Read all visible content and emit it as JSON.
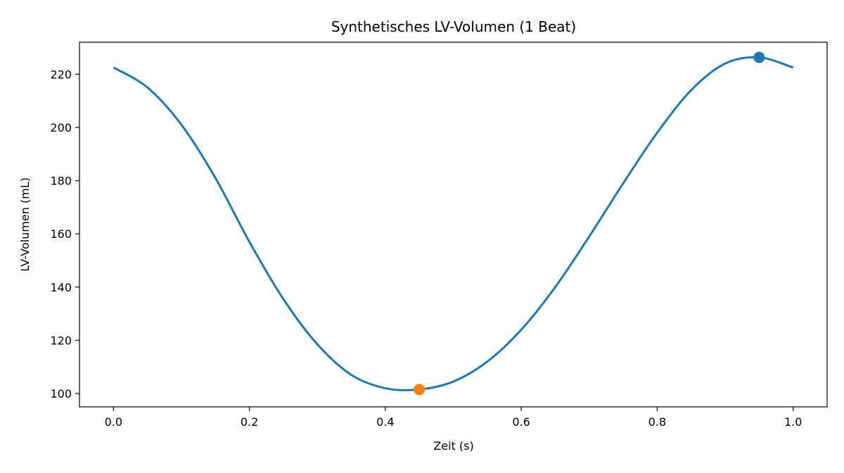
{
  "chart_data": {
    "type": "line",
    "title": "Synthetisches LV-Volumen (1 Beat)",
    "xlabel": "Zeit (s)",
    "ylabel": "LV-Volumen (mL)",
    "xlim": [
      -0.05,
      1.05
    ],
    "ylim": [
      95,
      232
    ],
    "x_ticks": [
      0.0,
      0.2,
      0.4,
      0.6,
      0.8,
      1.0
    ],
    "x_tick_labels": [
      "0.0",
      "0.2",
      "0.4",
      "0.6",
      "0.8",
      "1.0"
    ],
    "y_ticks": [
      100,
      120,
      140,
      160,
      180,
      200,
      220
    ],
    "y_tick_labels": [
      "100",
      "120",
      "140",
      "160",
      "180",
      "200",
      "220"
    ],
    "grid": false,
    "series": [
      {
        "color": "#1f77b4",
        "x": [
          0.0,
          0.05,
          0.1,
          0.15,
          0.2,
          0.25,
          0.3,
          0.35,
          0.4,
          0.45,
          0.5,
          0.55,
          0.6,
          0.65,
          0.7,
          0.75,
          0.8,
          0.85,
          0.9,
          0.95,
          1.0
        ],
        "y": [
          222.5,
          215.0,
          201.0,
          181.0,
          157.0,
          135.5,
          118.5,
          107.0,
          102.0,
          101.5,
          104.5,
          112.0,
          124.0,
          140.0,
          159.0,
          179.0,
          198.0,
          214.0,
          224.0,
          226.3,
          222.5
        ]
      }
    ],
    "markers": [
      {
        "x": 0.45,
        "y": 101.5,
        "color": "#ff7f0e"
      },
      {
        "x": 0.95,
        "y": 226.3,
        "color": "#1f77b4"
      }
    ]
  }
}
